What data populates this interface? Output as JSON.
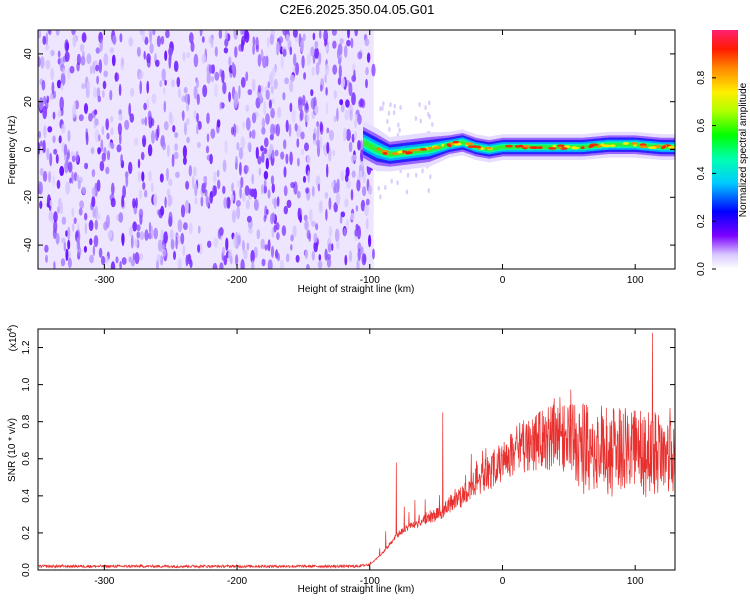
{
  "figure_title": "C2E6.2025.350.04.05.G01",
  "chart_data": [
    {
      "type": "heatmap",
      "title": "C2E6.2025.350.04.05.G01",
      "xlabel": "Height of straight line (km)",
      "ylabel": "Frequency (Hz)",
      "xlim": [
        -350,
        130
      ],
      "ylim": [
        -50,
        50
      ],
      "x_ticks": [
        -300,
        -200,
        -100,
        0,
        100
      ],
      "y_ticks": [
        -40,
        -20,
        0,
        20,
        40
      ],
      "noise_region_x": [
        -350,
        -97
      ],
      "signal_ridge": {
        "x": [
          -105,
          -95,
          -85,
          -70,
          -55,
          -40,
          -30,
          -20,
          -10,
          0,
          20,
          40,
          60,
          80,
          100,
          120,
          130
        ],
        "freq": [
          3,
          0,
          -2,
          -1,
          0,
          2,
          3,
          1,
          0,
          1,
          1,
          1,
          1,
          2,
          2,
          1,
          1
        ],
        "width": [
          5,
          5,
          4,
          4,
          4,
          3,
          3,
          3,
          3,
          3,
          3,
          3,
          3,
          3,
          3,
          3,
          3
        ]
      },
      "colorbar": {
        "label": "Normalized spectral amplitude",
        "range": [
          0.0,
          1.0
        ],
        "ticks": [
          "0.0",
          "0.2",
          "0.4",
          "0.6",
          "0.8"
        ]
      }
    },
    {
      "type": "line",
      "xlabel": "Height of straight line (km)",
      "ylabel": "SNR (10 * v/v)",
      "y_multiplier": "(x10",
      "y_multiplier_exp": "4",
      "y_multiplier_close": ")",
      "xlim": [
        -350,
        130
      ],
      "ylim": [
        0.0,
        1.3
      ],
      "x_ticks": [
        -300,
        -200,
        -100,
        0,
        100
      ],
      "y_ticks": [
        "0.0",
        "0.2",
        "0.4",
        "0.6",
        "0.8",
        "1.0",
        "1.2"
      ],
      "color": "#e8302e",
      "envelope": {
        "x": [
          -350,
          -110,
          -100,
          -90,
          -80,
          -70,
          -60,
          -50,
          -40,
          -30,
          -20,
          -10,
          0,
          10,
          20,
          30,
          40,
          50,
          60,
          70,
          80,
          90,
          100,
          110,
          115,
          120,
          125,
          130
        ],
        "y": [
          0.02,
          0.02,
          0.03,
          0.1,
          0.2,
          0.26,
          0.3,
          0.33,
          0.4,
          0.46,
          0.55,
          0.62,
          0.7,
          0.78,
          0.83,
          0.87,
          0.9,
          0.9,
          0.9,
          0.9,
          0.88,
          0.88,
          0.88,
          0.86,
          0.85,
          0.84,
          0.83,
          0.82
        ]
      },
      "peaks": [
        {
          "x": -80,
          "y": 0.58
        },
        {
          "x": -45,
          "y": 0.85
        },
        {
          "x": 113,
          "y": 1.28
        }
      ]
    }
  ]
}
